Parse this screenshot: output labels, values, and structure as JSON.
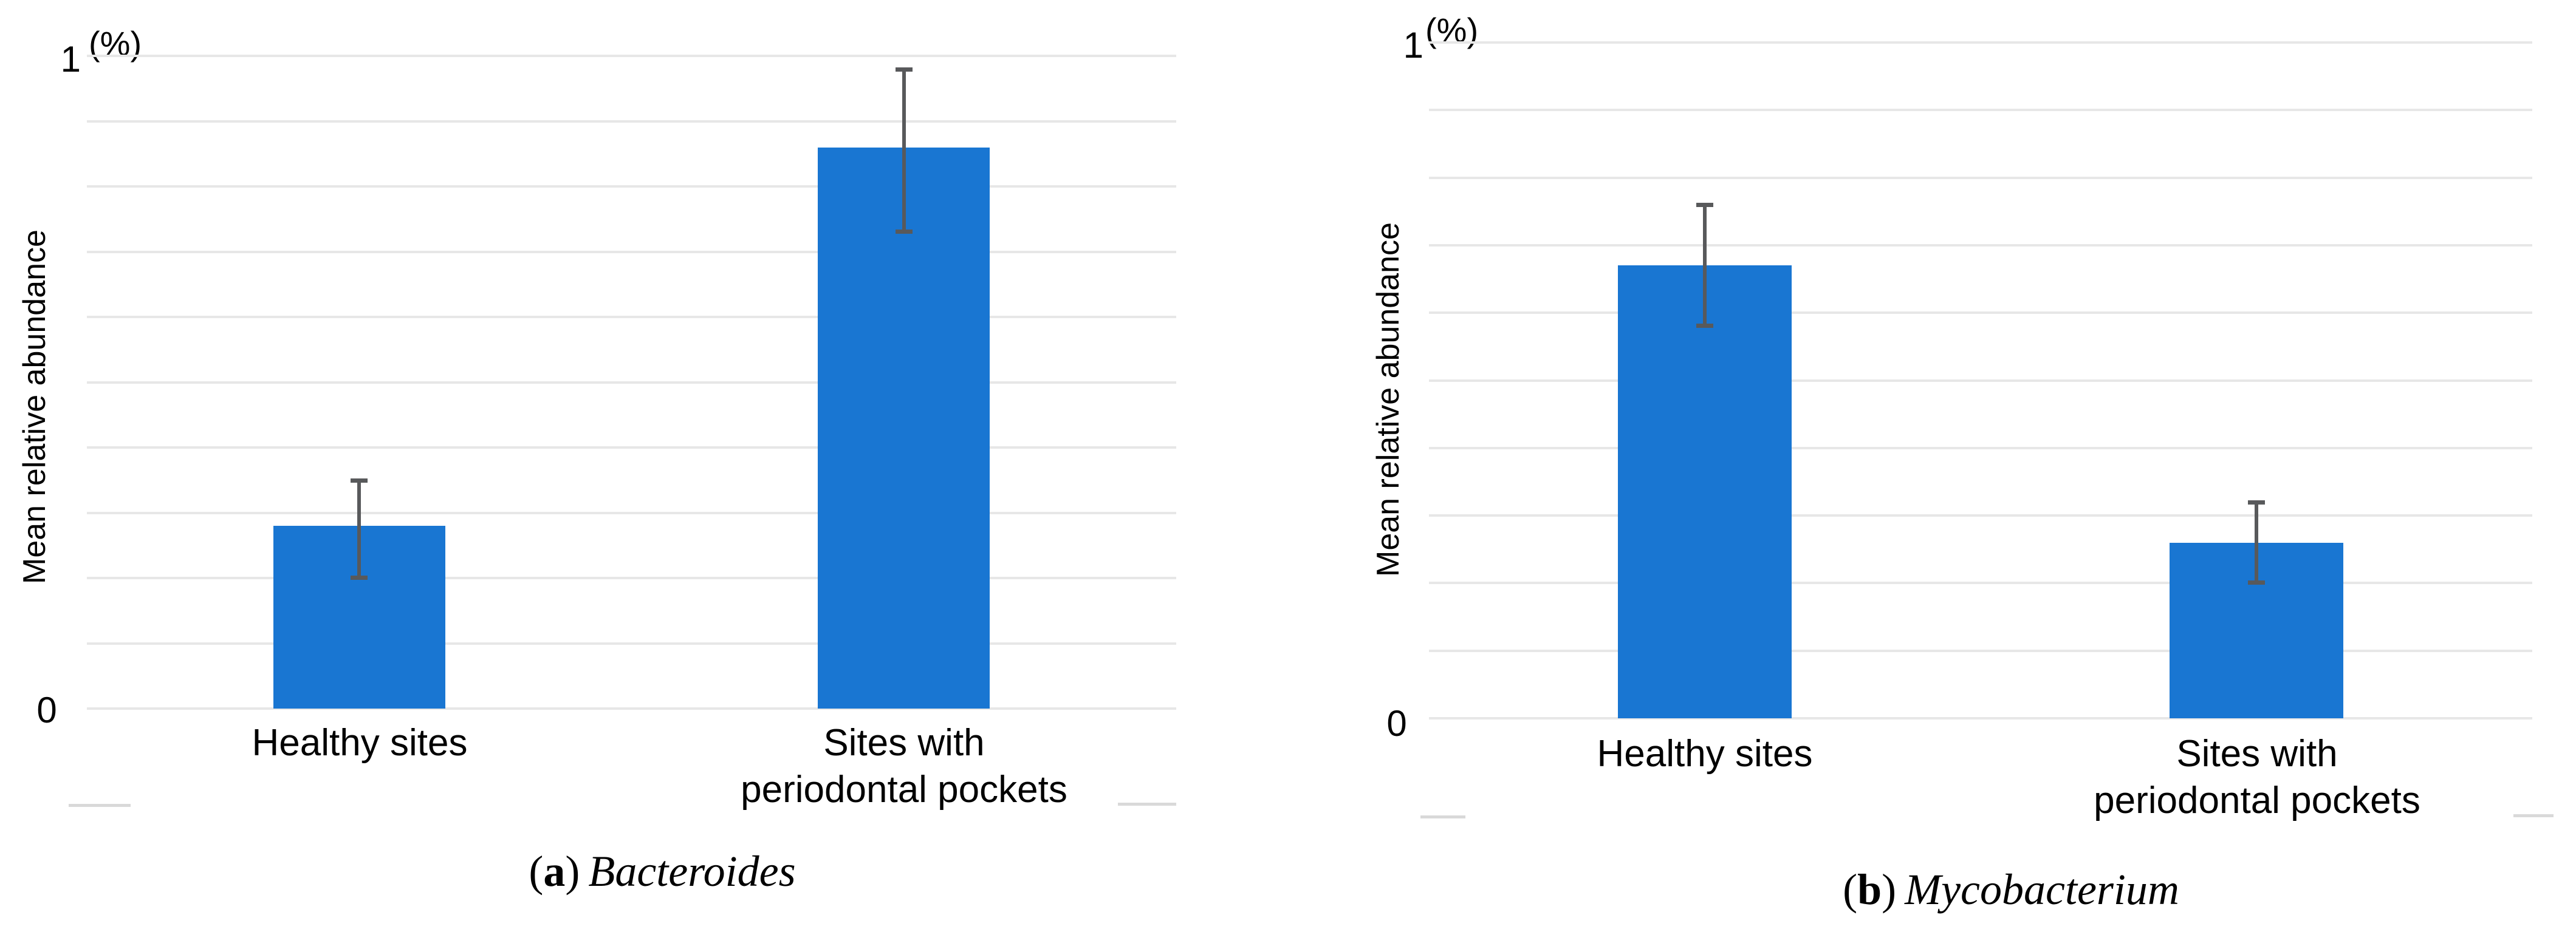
{
  "colors": {
    "bar": "#1976d2",
    "error_bar": "#58595b",
    "gridline": "#e7e7e7",
    "corner_mark": "#d9d9d9",
    "text": "#000000"
  },
  "panels": [
    {
      "id": "a",
      "y_axis_title": "Mean relative abundance",
      "unit_label": "(%)",
      "tick_top": "1",
      "tick_bottom": "0",
      "labels": {
        "cat1": "Healthy sites",
        "cat2_line1": "Sites with",
        "cat2_line2": "periodontal pockets"
      },
      "caption": {
        "open": "(",
        "letter": "a",
        "close": ")",
        "name": "Bacteroides"
      }
    },
    {
      "id": "b",
      "y_axis_title": "Mean relative abundance",
      "unit_label": "(%)",
      "tick_top": "1",
      "tick_bottom": "0",
      "labels": {
        "cat1": "Healthy sites",
        "cat2_line1": "Sites with",
        "cat2_line2": "periodontal pockets"
      },
      "caption": {
        "open": "(",
        "letter": "b",
        "close": ")",
        "name": "Mycobacterium"
      }
    }
  ],
  "chart_data": [
    {
      "type": "bar",
      "title": "(a) Bacteroides",
      "categories": [
        "Healthy sites",
        "Sites with periodontal pockets"
      ],
      "values": [
        0.28,
        0.86
      ],
      "error_low": [
        0.2,
        0.73
      ],
      "error_high": [
        0.35,
        0.98
      ],
      "xlabel": "",
      "ylabel": "Mean relative abundance",
      "y_unit": "%",
      "ylim": [
        0,
        1
      ],
      "y_ticks_labeled": [
        0,
        1
      ],
      "gridline_interval": 0.1,
      "grid": "horizontal only",
      "legend": "none",
      "bar_width_fraction": 0.1577
    },
    {
      "type": "bar",
      "title": "(b) Mycobacterium",
      "categories": [
        "Healthy sites",
        "Sites with periodontal pockets"
      ],
      "values": [
        0.67,
        0.26
      ],
      "error_low": [
        0.58,
        0.2
      ],
      "error_high": [
        0.76,
        0.32
      ],
      "xlabel": "",
      "ylabel": "Mean relative abundance",
      "y_unit": "%",
      "ylim": [
        0,
        1
      ],
      "y_ticks_labeled": [
        0,
        1
      ],
      "gridline_interval": 0.1,
      "grid": "horizontal only",
      "legend": "none",
      "bar_width_fraction": 0.1577
    }
  ]
}
